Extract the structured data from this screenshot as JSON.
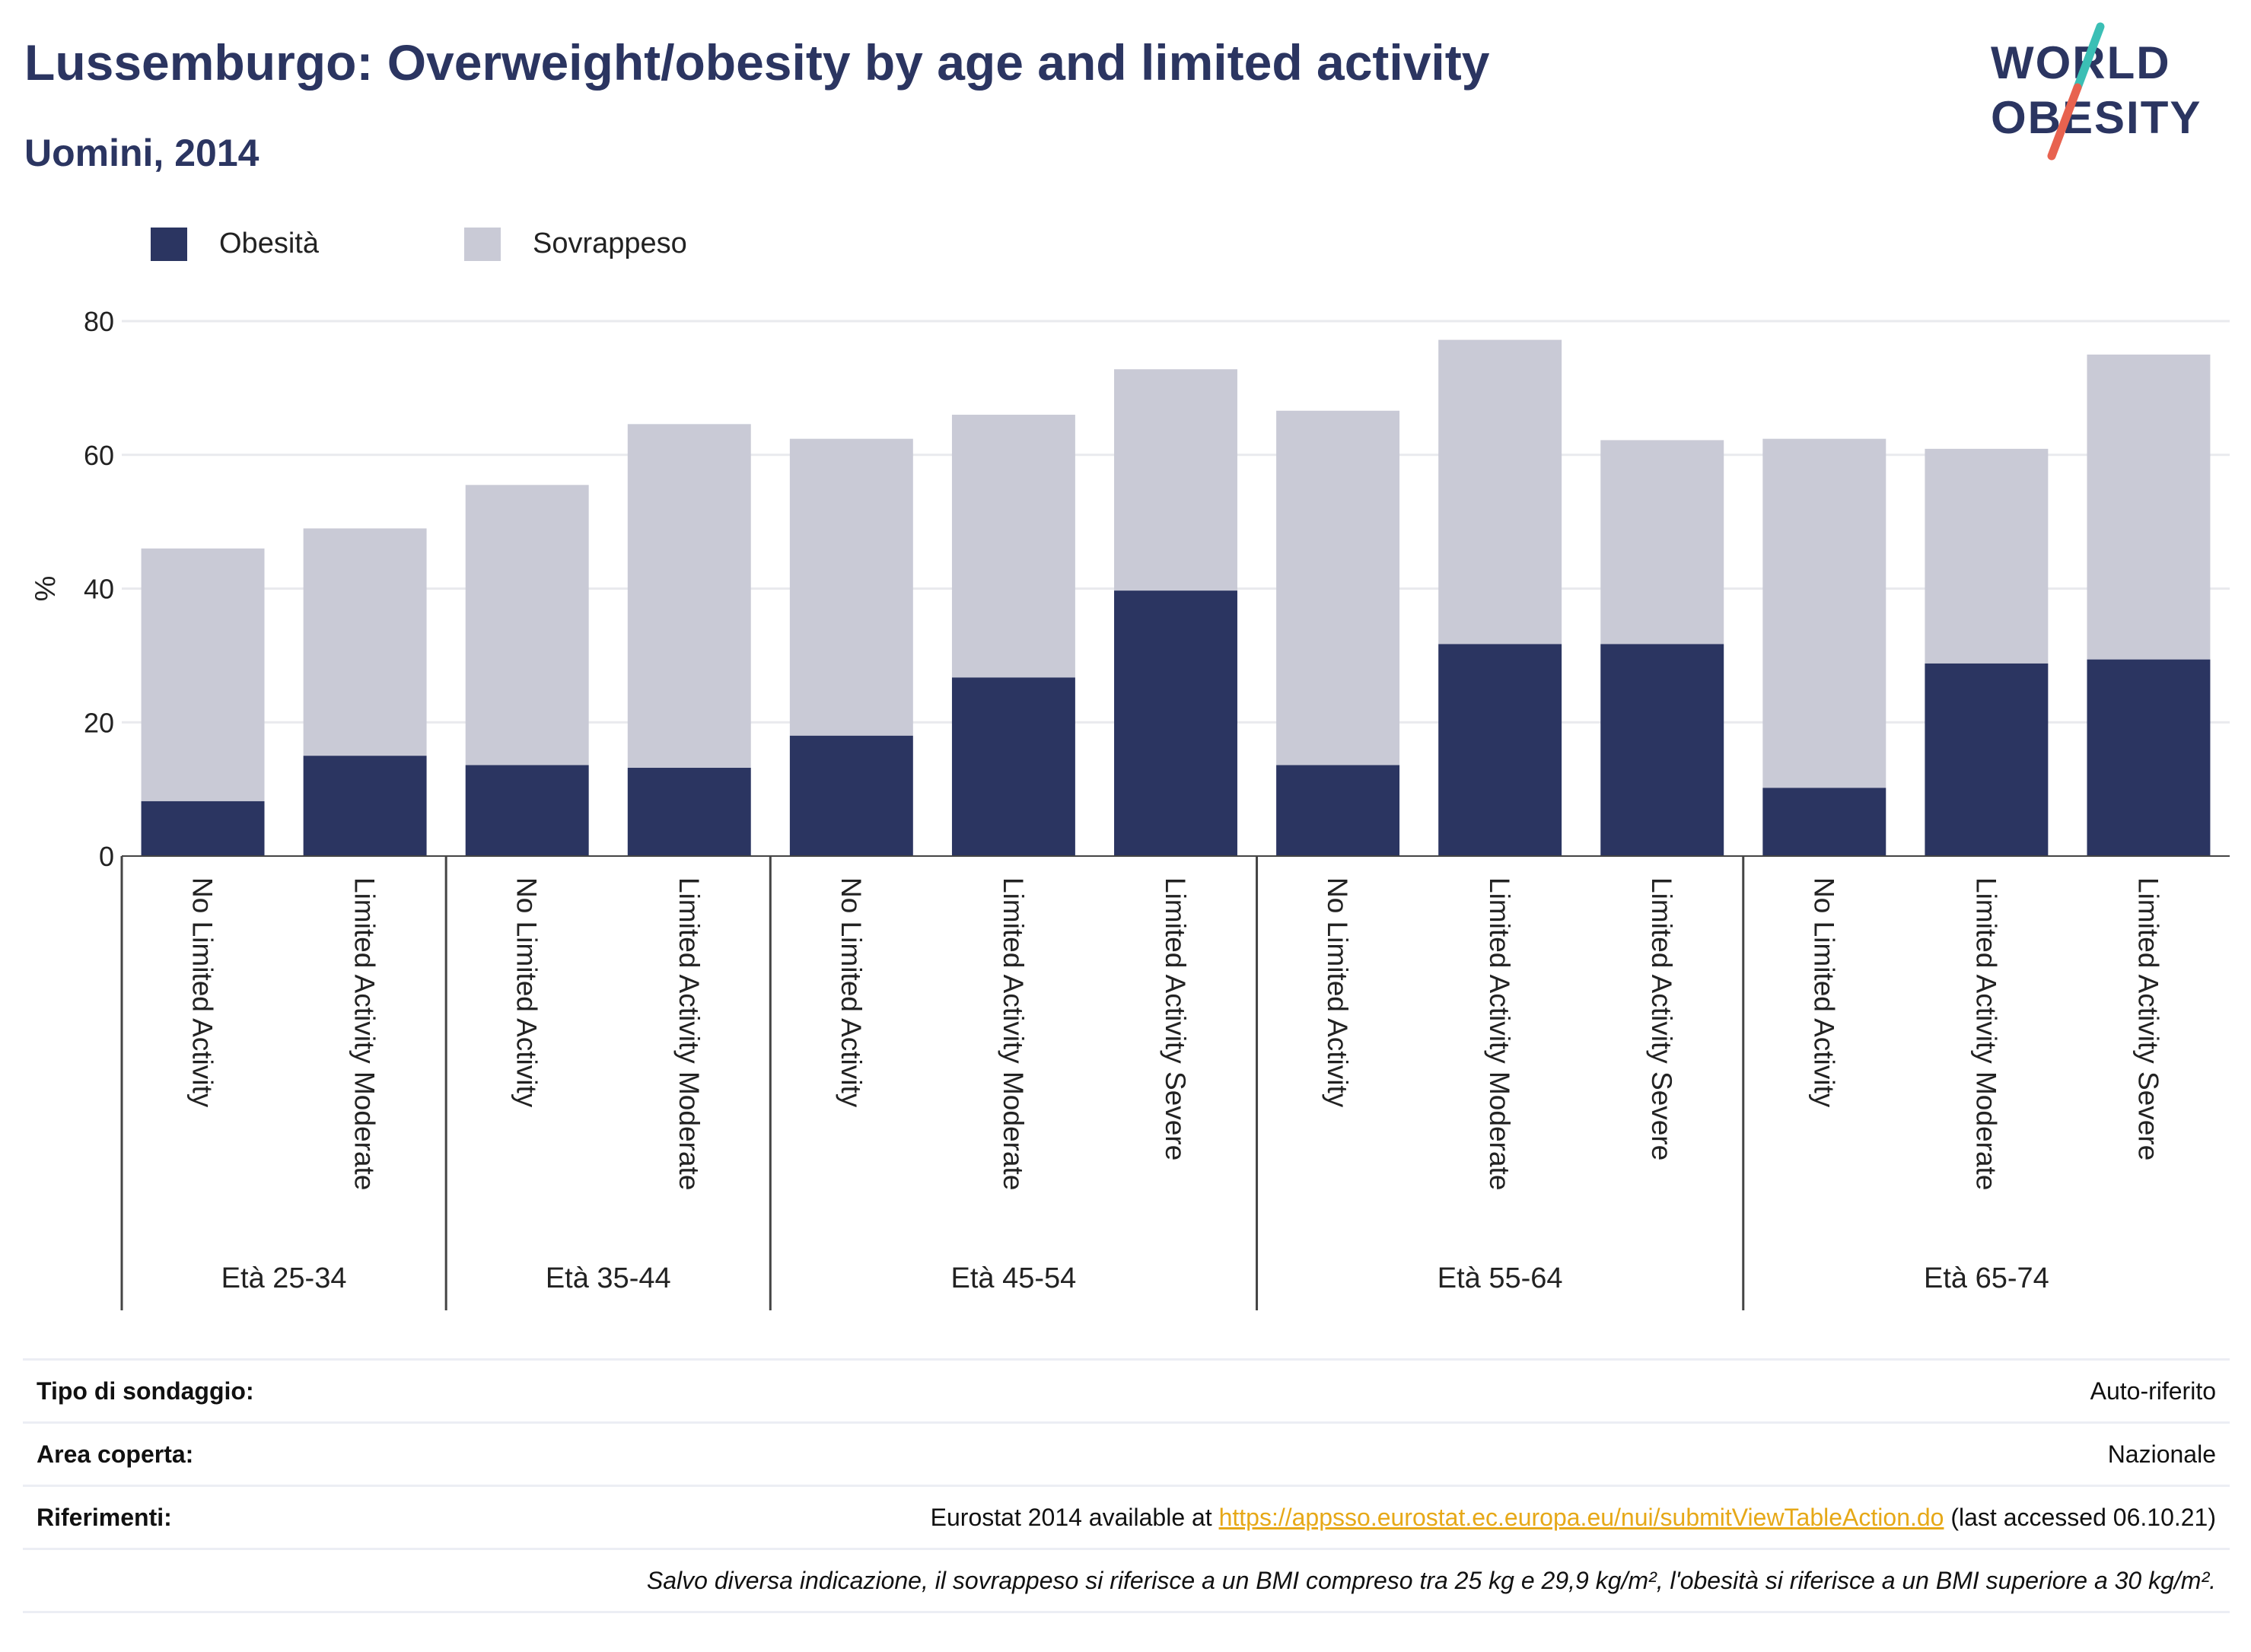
{
  "header": {
    "title": "Lussemburgo: Overweight/obesity by age and limited activity",
    "subtitle": "Uomini, 2014"
  },
  "logo": {
    "line1": "WORLD",
    "line2": "OBESITY",
    "accent_teal": "#3bbfb5",
    "accent_red": "#e8624f"
  },
  "colors": {
    "obesity": "#2b3561",
    "overweight": "#c9cad6",
    "title": "#2b3561",
    "link": "#e6a817"
  },
  "legend": [
    {
      "label": "Obesità",
      "color": "#2b3561"
    },
    {
      "label": "Sovrappeso",
      "color": "#c9cad6"
    }
  ],
  "chart_data": {
    "type": "bar",
    "stacked": true,
    "ylabel": "%",
    "ylim": [
      0,
      80
    ],
    "yticks": [
      0,
      20,
      40,
      60,
      80
    ],
    "grid": true,
    "legend_position": "top-left",
    "groups": [
      {
        "label": "Età 25-34",
        "categories": [
          "No Limited Activity",
          "Limited Activity Moderate"
        ]
      },
      {
        "label": "Età 35-44",
        "categories": [
          "No Limited Activity",
          "Limited Activity Moderate"
        ]
      },
      {
        "label": "Età 45-54",
        "categories": [
          "No Limited Activity",
          "Limited Activity Moderate",
          "Limited Activity Severe"
        ]
      },
      {
        "label": "Età 55-64",
        "categories": [
          "No Limited Activity",
          "Limited Activity Moderate",
          "Limited Activity Severe"
        ]
      },
      {
        "label": "Età 65-74",
        "categories": [
          "No Limited Activity",
          "Limited Activity Moderate",
          "Limited Activity Severe"
        ]
      }
    ],
    "series": [
      {
        "name": "Obesità",
        "values": [
          8.2,
          15.0,
          13.6,
          13.2,
          18.0,
          26.7,
          39.7,
          13.6,
          31.7,
          31.7,
          10.2,
          28.8,
          29.4
        ]
      },
      {
        "name": "Sovrappeso",
        "values": [
          37.8,
          34.0,
          41.9,
          51.4,
          44.4,
          39.3,
          33.1,
          53.0,
          45.5,
          30.5,
          52.2,
          32.1,
          45.6
        ]
      }
    ]
  },
  "info": [
    {
      "key": "Tipo di sondaggio:",
      "value": "Auto-riferito"
    },
    {
      "key": "Area coperta:",
      "value": "Nazionale"
    },
    {
      "key": "Riferimenti:",
      "value_prefix": "Eurostat 2014 available at ",
      "link": "https://appsso.eurostat.ec.europa.eu/nui/submitViewTableAction.do",
      "value_suffix": " (last accessed 06.10.21)"
    },
    {
      "key": "",
      "value": "Salvo diversa indicazione, il sovrappeso si riferisce a un BMI compreso tra 25 kg e 29,9 kg/m², l'obesità si riferisce a un BMI superiore a 30 kg/m²."
    }
  ]
}
